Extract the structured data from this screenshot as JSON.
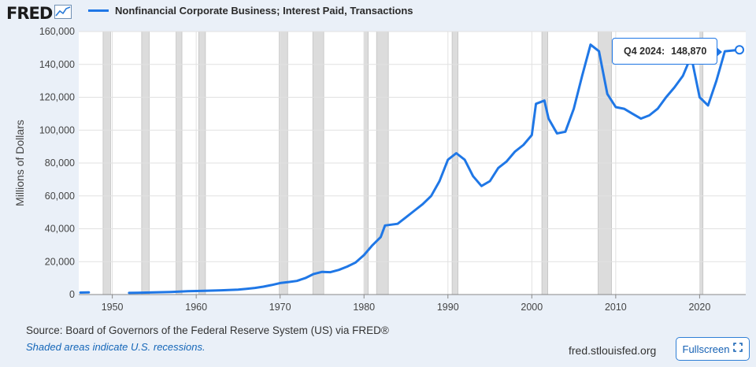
{
  "header": {
    "logo_text": "FRED"
  },
  "legend": {
    "label": "Nonfinancial Corporate Business; Interest Paid, Transactions",
    "color": "#1f77e6"
  },
  "tooltip": {
    "period": "Q4 2024:",
    "value": "148,870"
  },
  "footer": {
    "source": "Source: Board of Governors of the Federal Reserve System (US) via FRED®",
    "note": "Shaded areas indicate U.S. recessions.",
    "site": "fred.stlouisfed.org",
    "fullscreen_label": "Fullscreen"
  },
  "chart_data": {
    "type": "line",
    "title": "",
    "ylabel": "Millions of Dollars",
    "xlabel": "",
    "xlim": [
      1946,
      2025.5
    ],
    "ylim": [
      0,
      160000
    ],
    "x_ticks": [
      1950,
      1960,
      1970,
      1980,
      1990,
      2000,
      2010,
      2020
    ],
    "y_ticks": [
      0,
      20000,
      40000,
      60000,
      80000,
      100000,
      120000,
      140000,
      160000
    ],
    "y_tick_labels": [
      "0",
      "20,000",
      "40,000",
      "60,000",
      "80,000",
      "100,000",
      "120,000",
      "140,000",
      "160,000"
    ],
    "recessions": [
      [
        1948.9,
        1949.8
      ],
      [
        1953.5,
        1954.4
      ],
      [
        1957.6,
        1958.3
      ],
      [
        1960.3,
        1961.1
      ],
      [
        1969.9,
        1970.9
      ],
      [
        1973.9,
        1975.2
      ],
      [
        1980.0,
        1980.5
      ],
      [
        1981.5,
        1982.9
      ],
      [
        1990.5,
        1991.2
      ],
      [
        2001.2,
        2001.9
      ],
      [
        2007.9,
        2009.5
      ],
      [
        2020.0,
        2020.4
      ]
    ],
    "grid": true,
    "series": [
      {
        "name": "Nonfinancial Corporate Business; Interest Paid, Transactions",
        "segments": [
          [
            [
              1946.2,
              1200
            ],
            [
              1947.2,
              1300
            ]
          ],
          [
            [
              1952.0,
              1000
            ],
            [
              1953.0,
              1100
            ],
            [
              1955.0,
              1300
            ],
            [
              1957.0,
              1600
            ],
            [
              1959.0,
              2000
            ],
            [
              1961.0,
              2300
            ],
            [
              1963.0,
              2600
            ],
            [
              1965.0,
              3000
            ],
            [
              1966.0,
              3500
            ],
            [
              1967.0,
              4000
            ],
            [
              1968.0,
              4800
            ],
            [
              1969.0,
              5800
            ],
            [
              1970.0,
              7000
            ],
            [
              1971.0,
              7600
            ],
            [
              1972.0,
              8300
            ],
            [
              1973.0,
              10000
            ],
            [
              1974.0,
              12500
            ],
            [
              1975.0,
              13800
            ],
            [
              1976.0,
              13600
            ],
            [
              1977.0,
              15000
            ],
            [
              1978.0,
              17000
            ],
            [
              1979.0,
              19500
            ],
            [
              1980.0,
              24000
            ],
            [
              1981.0,
              30000
            ],
            [
              1982.0,
              35000
            ],
            [
              1982.5,
              42000
            ],
            [
              1984.0,
              43000
            ],
            [
              1985.0,
              47000
            ],
            [
              1986.0,
              51000
            ],
            [
              1987.0,
              55000
            ],
            [
              1988.0,
              60000
            ],
            [
              1989.0,
              69000
            ],
            [
              1990.0,
              82000
            ],
            [
              1991.0,
              86000
            ],
            [
              1992.0,
              82000
            ],
            [
              1993.0,
              72000
            ],
            [
              1994.0,
              66000
            ],
            [
              1995.0,
              69000
            ],
            [
              1996.0,
              77000
            ],
            [
              1997.0,
              81000
            ],
            [
              1998.0,
              87000
            ],
            [
              1999.0,
              91000
            ],
            [
              2000.0,
              97000
            ],
            [
              2000.5,
              116000
            ],
            [
              2001.5,
              118000
            ],
            [
              2002.0,
              107000
            ],
            [
              2003.0,
              98000
            ],
            [
              2004.0,
              99000
            ],
            [
              2005.0,
              113000
            ],
            [
              2006.0,
              133000
            ],
            [
              2007.0,
              152000
            ],
            [
              2008.0,
              148000
            ],
            [
              2009.0,
              122000
            ],
            [
              2010.0,
              114000
            ],
            [
              2011.0,
              113000
            ],
            [
              2012.0,
              110000
            ],
            [
              2013.0,
              107000
            ],
            [
              2014.0,
              109000
            ],
            [
              2015.0,
              113000
            ],
            [
              2016.0,
              120000
            ],
            [
              2017.0,
              126000
            ],
            [
              2018.0,
              133000
            ],
            [
              2019.0,
              145000
            ],
            [
              2020.0,
              120000
            ],
            [
              2021.0,
              115000
            ],
            [
              2022.0,
              130000
            ],
            [
              2023.0,
              148000
            ],
            [
              2024.75,
              148870
            ]
          ]
        ]
      }
    ]
  }
}
